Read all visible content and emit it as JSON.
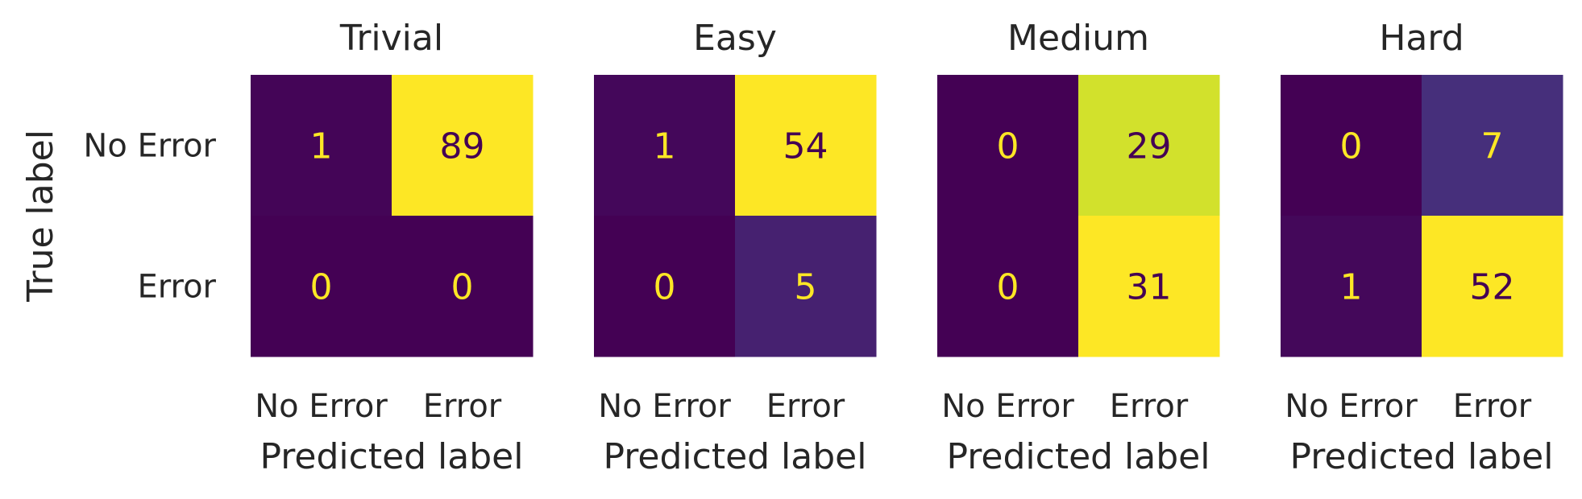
{
  "chart_data": {
    "type": "heatmap",
    "colormap": "viridis",
    "row_labels": [
      "No Error",
      "Error"
    ],
    "col_labels": [
      "No Error",
      "Error"
    ],
    "ylabel": "True label",
    "xlabel": "Predicted label",
    "text_colors": {
      "on_dark": "#fde725",
      "on_bright": "#440154"
    },
    "panels": [
      {
        "title": "Trivial",
        "matrix": [
          [
            1,
            89
          ],
          [
            0,
            0
          ]
        ]
      },
      {
        "title": "Easy",
        "matrix": [
          [
            1,
            54
          ],
          [
            0,
            5
          ]
        ]
      },
      {
        "title": "Medium",
        "matrix": [
          [
            0,
            29
          ],
          [
            0,
            31
          ]
        ]
      },
      {
        "title": "Hard",
        "matrix": [
          [
            0,
            7
          ],
          [
            1,
            52
          ]
        ]
      }
    ]
  }
}
